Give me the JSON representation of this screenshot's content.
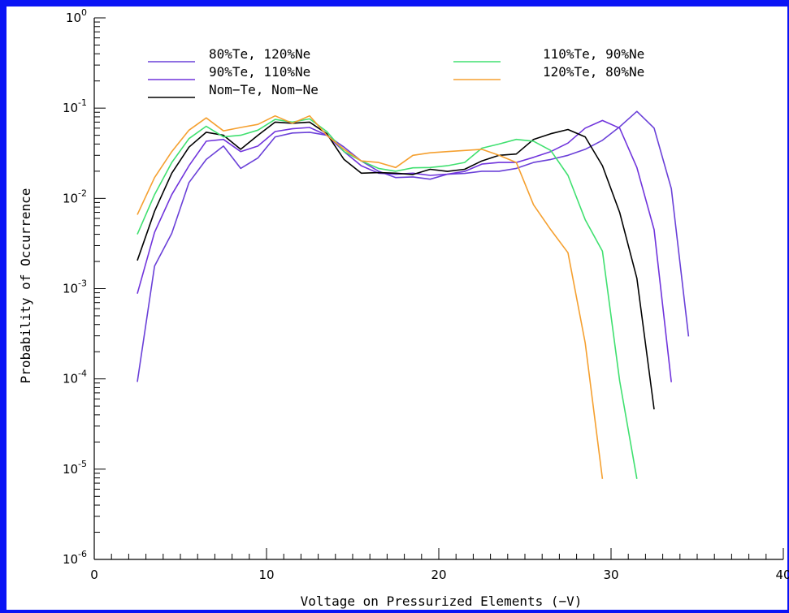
{
  "chart_data": {
    "type": "line",
    "xlabel": "Voltage on Pressurized Elements (−V)",
    "ylabel": "Probability of Occurrence",
    "xlim": [
      0,
      40
    ],
    "ylim": [
      1e-06,
      1
    ],
    "yscale": "log",
    "x_ticks": [
      "0",
      "10",
      "20",
      "30",
      "40"
    ],
    "y_ticks": [
      {
        "base": "10",
        "exp": "0",
        "value": 1
      },
      {
        "base": "10",
        "exp": "-1",
        "value": 0.1
      },
      {
        "base": "10",
        "exp": "-2",
        "value": 0.01
      },
      {
        "base": "10",
        "exp": "-3",
        "value": 0.001
      },
      {
        "base": "10",
        "exp": "-4",
        "value": 0.0001
      },
      {
        "base": "10",
        "exp": "-5",
        "value": 1e-05
      },
      {
        "base": "10",
        "exp": "-6",
        "value": 1e-06
      }
    ],
    "legend_position": "top",
    "series": [
      {
        "name": "80%Te, 120%Ne",
        "color": "#6a40d8",
        "x": [
          2.5,
          3.5,
          4.5,
          5.5,
          6.5,
          7.5,
          8.5,
          9.5,
          10.5,
          11.5,
          12.5,
          13.5,
          14.5,
          15.5,
          16.5,
          17.5,
          18.5,
          19.5,
          20.5,
          21.5,
          22.5,
          23.5,
          24.5,
          25.5,
          26.5,
          27.5,
          28.5,
          29.5,
          30.5,
          31.5,
          32.5,
          33.5,
          34.5
        ],
        "y": [
          9.25e-05,
          0.00178,
          0.0041,
          0.015,
          0.027,
          0.038,
          0.0215,
          0.028,
          0.048,
          0.053,
          0.054,
          0.05,
          0.037,
          0.026,
          0.02,
          0.017,
          0.0173,
          0.0163,
          0.0185,
          0.0189,
          0.02,
          0.02,
          0.0215,
          0.025,
          0.027,
          0.03,
          0.035,
          0.044,
          0.062,
          0.092,
          0.06,
          0.0128,
          0.000295
        ]
      },
      {
        "name": "90%Te, 110%Ne",
        "color": "#7034dc",
        "x": [
          2.5,
          3.5,
          4.5,
          5.5,
          6.5,
          7.5,
          8.5,
          9.5,
          10.5,
          11.5,
          12.5,
          13.5,
          14.5,
          15.5,
          16.5,
          17.5,
          18.5,
          19.5,
          20.5,
          21.5,
          22.5,
          23.5,
          24.5,
          25.5,
          26.5,
          27.5,
          28.5,
          29.5,
          30.5,
          31.5,
          32.5,
          33.5
        ],
        "y": [
          0.00088,
          0.0042,
          0.011,
          0.023,
          0.043,
          0.045,
          0.033,
          0.038,
          0.055,
          0.059,
          0.061,
          0.05,
          0.033,
          0.023,
          0.019,
          0.0185,
          0.019,
          0.018,
          0.0185,
          0.0199,
          0.024,
          0.025,
          0.025,
          0.0285,
          0.033,
          0.041,
          0.06,
          0.073,
          0.06,
          0.022,
          0.0045,
          9.2e-05
        ]
      },
      {
        "name": "Nom−Te, Nom−Ne",
        "color": "#000000",
        "x": [
          2.5,
          3.5,
          4.5,
          5.5,
          6.5,
          7.5,
          8.5,
          9.5,
          10.5,
          11.5,
          12.5,
          13.5,
          14.5,
          15.5,
          16.5,
          17.5,
          18.5,
          19.5,
          20.5,
          21.5,
          22.5,
          23.5,
          24.5,
          25.5,
          26.5,
          27.5,
          28.5,
          29.5,
          30.5,
          31.5,
          32.5
        ],
        "y": [
          0.00205,
          0.0072,
          0.019,
          0.037,
          0.054,
          0.05,
          0.035,
          0.05,
          0.07,
          0.068,
          0.07,
          0.052,
          0.027,
          0.019,
          0.0193,
          0.019,
          0.0184,
          0.021,
          0.0199,
          0.021,
          0.026,
          0.03,
          0.031,
          0.045,
          0.052,
          0.058,
          0.048,
          0.023,
          0.007,
          0.0013,
          4.6e-05
        ]
      },
      {
        "name": "110%Te, 90%Ne",
        "color": "#40e070",
        "x": [
          2.5,
          3.5,
          4.5,
          5.5,
          6.5,
          7.5,
          8.5,
          9.5,
          10.5,
          11.5,
          12.5,
          13.5,
          14.5,
          15.5,
          16.5,
          17.5,
          18.5,
          19.5,
          20.5,
          21.5,
          22.5,
          23.5,
          24.5,
          25.5,
          26.5,
          27.5,
          28.5,
          29.5,
          30.5,
          31.5
        ],
        "y": [
          0.004,
          0.011,
          0.025,
          0.046,
          0.063,
          0.048,
          0.05,
          0.057,
          0.075,
          0.07,
          0.076,
          0.055,
          0.033,
          0.026,
          0.0215,
          0.02,
          0.0218,
          0.022,
          0.023,
          0.025,
          0.036,
          0.04,
          0.045,
          0.043,
          0.034,
          0.018,
          0.0058,
          0.0026,
          9.5e-05,
          7.8e-06
        ]
      },
      {
        "name": "120%Te, 80%Ne",
        "color": "#f5a030",
        "x": [
          2.5,
          3.5,
          4.5,
          5.5,
          6.5,
          7.5,
          8.5,
          9.5,
          10.5,
          11.5,
          12.5,
          13.5,
          14.5,
          15.5,
          16.5,
          17.5,
          18.5,
          19.5,
          20.5,
          21.5,
          22.5,
          23.5,
          24.5,
          25.5,
          26.5,
          27.5,
          28.5,
          29.5
        ],
        "y": [
          0.0066,
          0.017,
          0.033,
          0.057,
          0.078,
          0.056,
          0.061,
          0.066,
          0.082,
          0.068,
          0.082,
          0.05,
          0.035,
          0.026,
          0.025,
          0.022,
          0.03,
          0.032,
          0.033,
          0.034,
          0.035,
          0.03,
          0.025,
          0.0085,
          0.0045,
          0.0025,
          0.00025,
          7.8e-06
        ]
      }
    ]
  }
}
